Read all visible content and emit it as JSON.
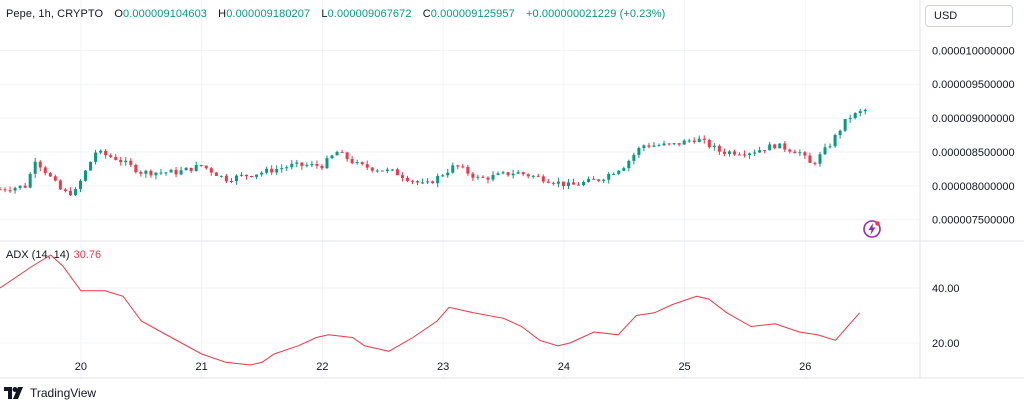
{
  "header": {
    "symbol": "Pepe, 1h, CRYPTO",
    "open_label": "O",
    "open": "0.000009104603",
    "high_label": "H",
    "high": "0.000009180207",
    "low_label": "L",
    "low": "0.000009067672",
    "close_label": "C",
    "close": "0.000009125957",
    "change": "+0.000000021229 (+0.23%)"
  },
  "currency_button": "USD",
  "indicator": {
    "name": "ADX (14, 14)",
    "value": "30.76"
  },
  "brand": "TradingView",
  "colors": {
    "up": "#089981",
    "down": "#f23645",
    "adx_line": "#f23645",
    "grid": "#f0f3fa",
    "border": "#e0e3eb",
    "axis_text": "#131722",
    "flash_icon": "#9c27b0"
  },
  "chart_data": [
    {
      "type": "candlestick",
      "title": "Pepe, 1h, CRYPTO",
      "x_tick_labels": [
        "20",
        "21",
        "22",
        "23",
        "24",
        "25",
        "26"
      ],
      "y_tick_labels": [
        "0.000007500000",
        "0.000008000000",
        "0.000008500000",
        "0.000009000000",
        "0.000009500000",
        "0.000010000000"
      ],
      "y_ticks": [
        7.5e-06,
        8e-06,
        8.5e-06,
        9e-06,
        9.5e-06,
        1e-05
      ],
      "ylim": [
        7.23e-06,
        1.03e-05
      ],
      "x_range_days": [
        19.33,
        26.95
      ],
      "series": [
        {
          "name": "Pepe",
          "x_start_day": 19.33,
          "bar_hours": 1,
          "close_path_keypoints": [
            [
              19.33,
              7.95e-06
            ],
            [
              19.55,
              8e-06
            ],
            [
              19.62,
              8.4e-06
            ],
            [
              19.85,
              7.9e-06
            ],
            [
              19.95,
              7.9e-06
            ],
            [
              20.12,
              8.5e-06
            ],
            [
              20.3,
              8.4e-06
            ],
            [
              20.5,
              8.2e-06
            ],
            [
              20.8,
              8.2e-06
            ],
            [
              21.0,
              8.3e-06
            ],
            [
              21.2,
              8.1e-06
            ],
            [
              21.5,
              8.2e-06
            ],
            [
              21.75,
              8.3e-06
            ],
            [
              22.0,
              8.3e-06
            ],
            [
              22.12,
              8.5e-06
            ],
            [
              22.3,
              8.3e-06
            ],
            [
              22.6,
              8.2e-06
            ],
            [
              22.85,
              8e-06
            ],
            [
              23.1,
              8.3e-06
            ],
            [
              23.3,
              8.1e-06
            ],
            [
              23.6,
              8.2e-06
            ],
            [
              23.85,
              8.1e-06
            ],
            [
              24.05,
              8e-06
            ],
            [
              24.3,
              8.1e-06
            ],
            [
              24.5,
              8.3e-06
            ],
            [
              24.65,
              8.6e-06
            ],
            [
              24.9,
              8.6e-06
            ],
            [
              25.1,
              8.7e-06
            ],
            [
              25.3,
              8.5e-06
            ],
            [
              25.55,
              8.5e-06
            ],
            [
              25.75,
              8.6e-06
            ],
            [
              25.95,
              8.5e-06
            ],
            [
              26.05,
              8.3e-06
            ],
            [
              26.2,
              8.6e-06
            ],
            [
              26.35,
              9e-06
            ],
            [
              26.5,
              9.12e-06
            ]
          ]
        }
      ]
    },
    {
      "type": "line",
      "title": "ADX (14, 14)",
      "y_tick_labels": [
        "20.00",
        "40.00"
      ],
      "y_ticks": [
        20,
        40
      ],
      "ylim": [
        8,
        56
      ],
      "series": [
        {
          "name": "ADX",
          "x": [
            19.33,
            19.6,
            19.75,
            19.85,
            20.0,
            20.2,
            20.35,
            20.5,
            20.75,
            21.0,
            21.2,
            21.4,
            21.5,
            21.6,
            21.8,
            21.95,
            22.05,
            22.25,
            22.35,
            22.55,
            22.75,
            22.95,
            23.05,
            23.25,
            23.5,
            23.65,
            23.8,
            23.95,
            24.05,
            24.25,
            24.45,
            24.6,
            24.75,
            24.9,
            25.1,
            25.2,
            25.35,
            25.55,
            25.75,
            25.95,
            26.1,
            26.25,
            26.45
          ],
          "y": [
            40,
            48,
            52,
            48,
            39,
            39,
            37,
            28,
            22,
            16,
            13,
            12,
            13,
            16,
            19,
            22,
            23,
            22,
            19,
            17,
            22,
            28,
            33,
            31,
            29,
            26,
            21,
            19,
            20,
            24,
            23,
            30,
            31,
            34,
            37,
            36,
            31,
            26,
            27,
            24,
            23,
            21,
            31
          ]
        }
      ]
    }
  ]
}
